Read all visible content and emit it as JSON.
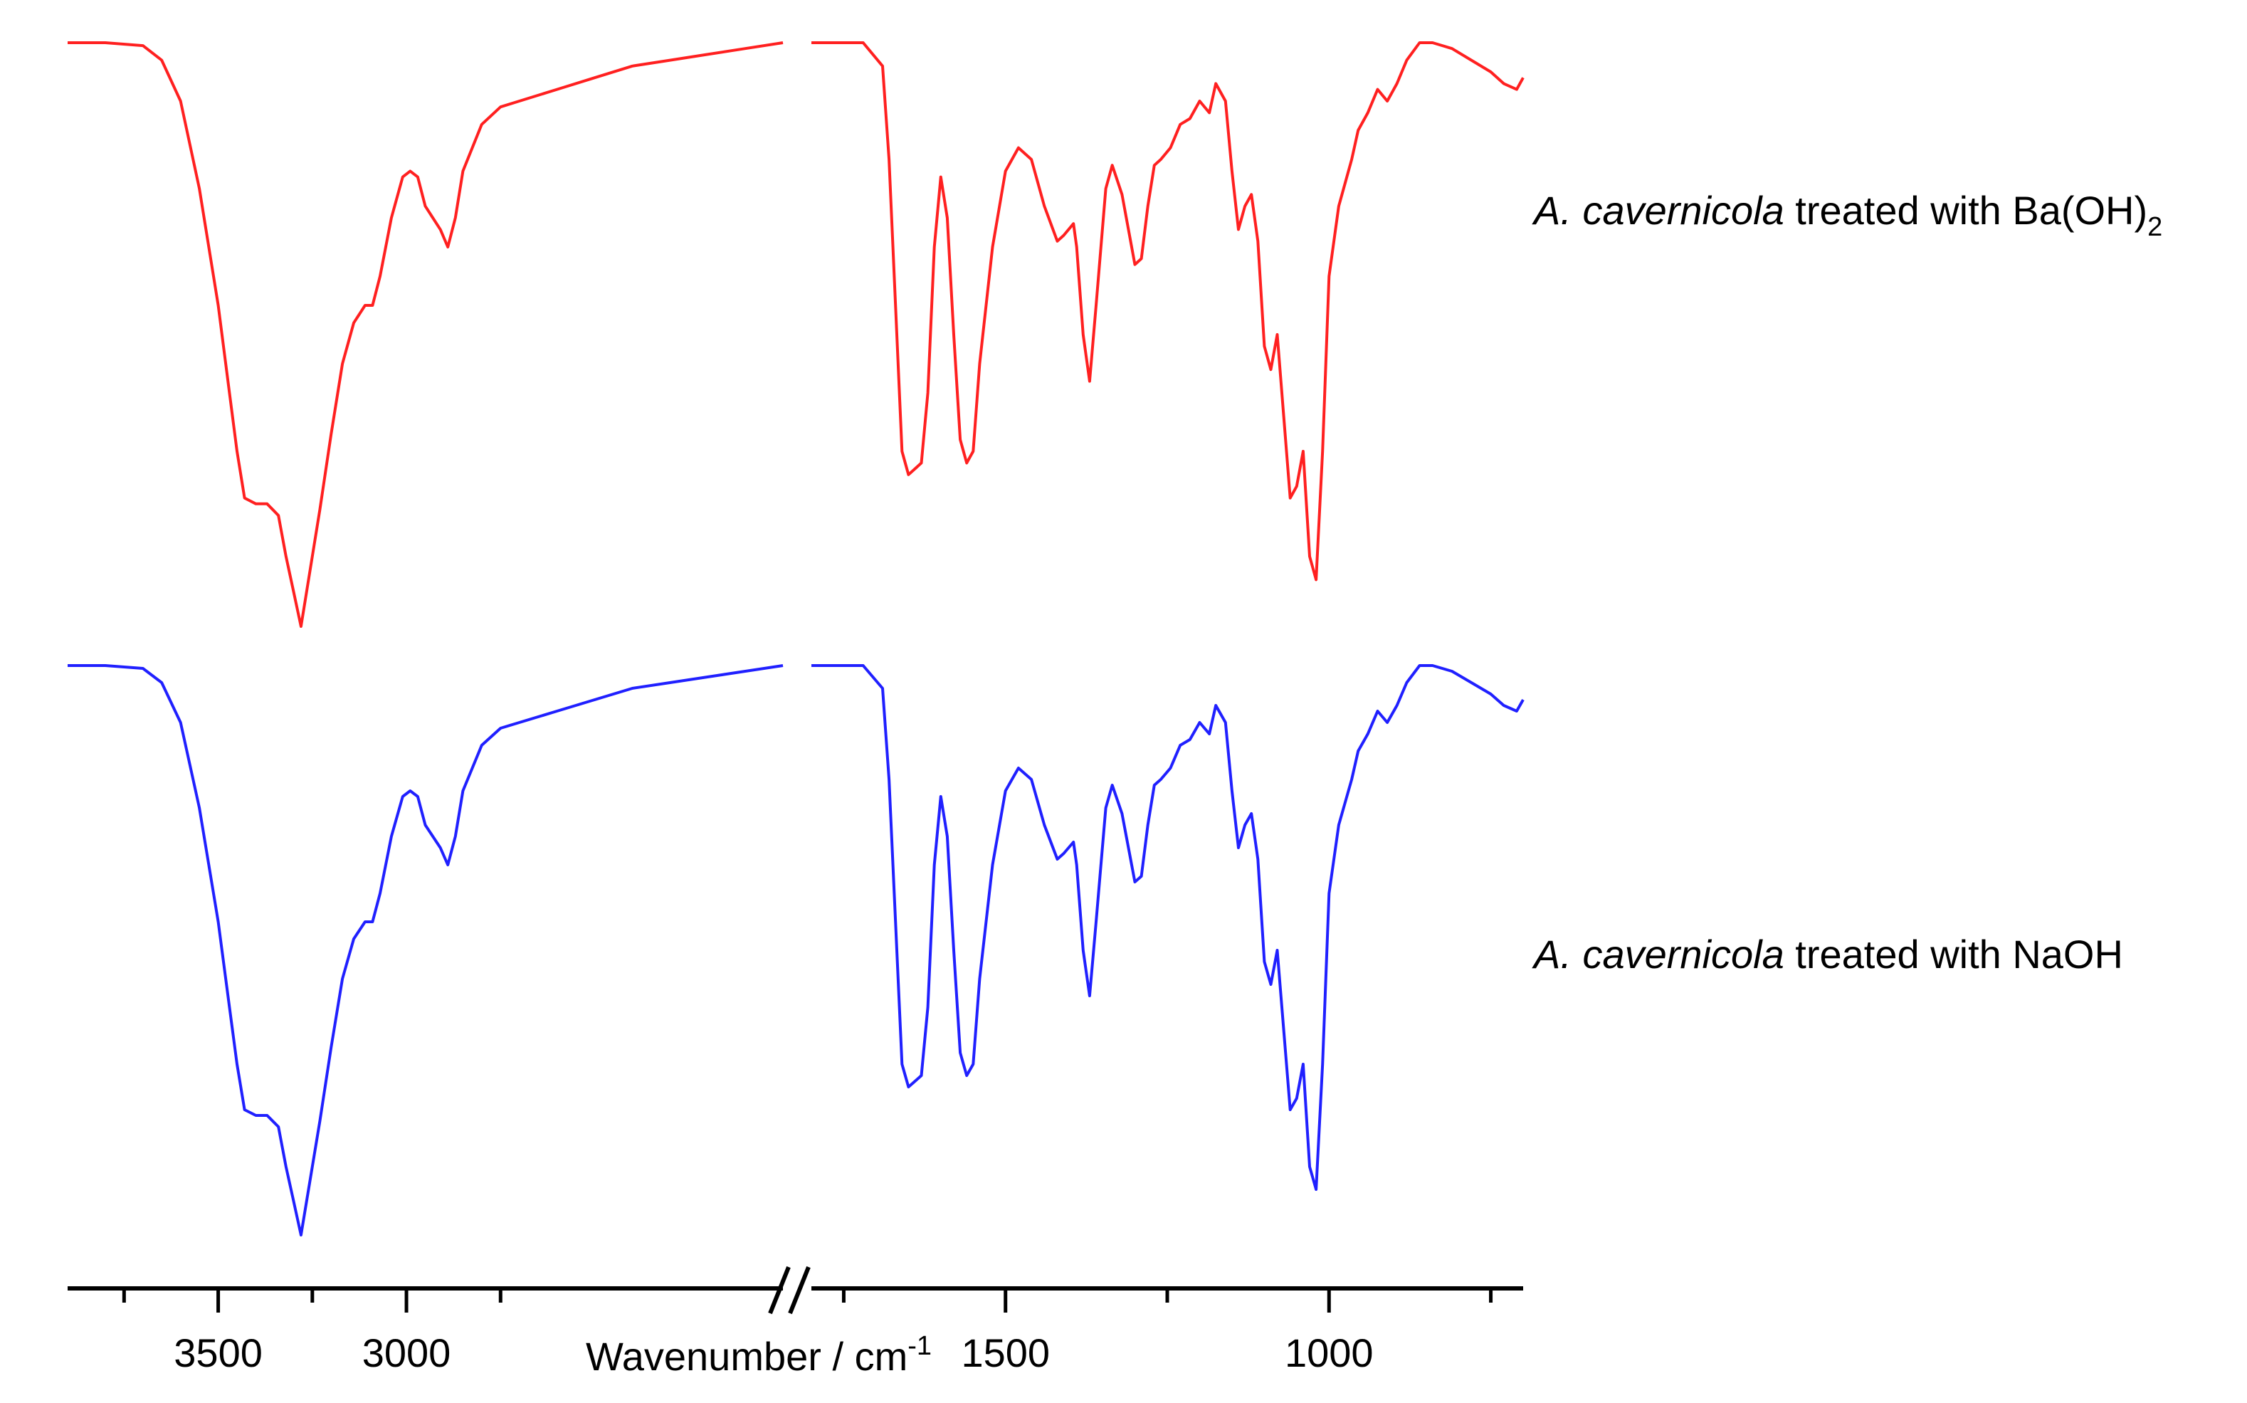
{
  "chart_data": {
    "type": "line",
    "xlabel": "Wavenumber / cm",
    "xlabel_superscript": "-1",
    "x_axis_broken": true,
    "x_segments": [
      {
        "range": [
          3900,
          2000
        ],
        "ticks": [
          3500,
          3000
        ],
        "tick_labels": [
          "3500",
          "3000"
        ],
        "minor_ticks": [
          3750,
          3250,
          2750
        ]
      },
      {
        "range": [
          1800,
          700
        ],
        "ticks": [
          1500,
          1000
        ],
        "tick_labels": [
          "1500",
          "1000"
        ],
        "minor_ticks": [
          1750,
          1250,
          750
        ]
      }
    ],
    "y_axis_shown": false,
    "y_units": "transmittance (relative, offset)",
    "series": [
      {
        "name": "A. cavernicola treated with Ba(OH)",
        "name_parts": {
          "italic": "A. cavernicola",
          "text": " treated with Ba(OH)",
          "subscript": "2"
        },
        "color": "#ff2020",
        "offset": 1.0,
        "segments": [
          [
            [
              3900,
              1.0
            ],
            [
              3800,
              1.0
            ],
            [
              3700,
              0.995
            ],
            [
              3650,
              0.97
            ],
            [
              3600,
              0.9
            ],
            [
              3550,
              0.75
            ],
            [
              3500,
              0.55
            ],
            [
              3470,
              0.4
            ],
            [
              3450,
              0.3
            ],
            [
              3430,
              0.22
            ],
            [
              3400,
              0.21
            ],
            [
              3370,
              0.21
            ],
            [
              3340,
              0.19
            ],
            [
              3320,
              0.12
            ],
            [
              3300,
              0.06
            ],
            [
              3280,
              0.0
            ],
            [
              3260,
              0.08
            ],
            [
              3230,
              0.2
            ],
            [
              3200,
              0.33
            ],
            [
              3170,
              0.45
            ],
            [
              3140,
              0.52
            ],
            [
              3110,
              0.55
            ],
            [
              3090,
              0.55
            ],
            [
              3070,
              0.6
            ],
            [
              3040,
              0.7
            ],
            [
              3010,
              0.77
            ],
            [
              2990,
              0.78
            ],
            [
              2970,
              0.77
            ],
            [
              2950,
              0.72
            ],
            [
              2930,
              0.7
            ],
            [
              2910,
              0.68
            ],
            [
              2890,
              0.65
            ],
            [
              2870,
              0.7
            ],
            [
              2850,
              0.78
            ],
            [
              2800,
              0.86
            ],
            [
              2750,
              0.89
            ],
            [
              2700,
              0.9
            ],
            [
              2600,
              0.92
            ],
            [
              2500,
              0.94
            ],
            [
              2400,
              0.96
            ],
            [
              2300,
              0.97
            ],
            [
              2200,
              0.98
            ],
            [
              2100,
              0.99
            ],
            [
              2000,
              1.0
            ]
          ],
          [
            [
              1800,
              1.0
            ],
            [
              1720,
              1.0
            ],
            [
              1690,
              0.96
            ],
            [
              1680,
              0.8
            ],
            [
              1670,
              0.55
            ],
            [
              1660,
              0.3
            ],
            [
              1650,
              0.26
            ],
            [
              1640,
              0.27
            ],
            [
              1630,
              0.28
            ],
            [
              1620,
              0.4
            ],
            [
              1610,
              0.65
            ],
            [
              1600,
              0.77
            ],
            [
              1590,
              0.7
            ],
            [
              1580,
              0.5
            ],
            [
              1570,
              0.32
            ],
            [
              1560,
              0.28
            ],
            [
              1550,
              0.3
            ],
            [
              1540,
              0.45
            ],
            [
              1520,
              0.65
            ],
            [
              1500,
              0.78
            ],
            [
              1480,
              0.82
            ],
            [
              1460,
              0.8
            ],
            [
              1440,
              0.72
            ],
            [
              1420,
              0.66
            ],
            [
              1410,
              0.67
            ],
            [
              1395,
              0.69
            ],
            [
              1390,
              0.65
            ],
            [
              1380,
              0.5
            ],
            [
              1370,
              0.42
            ],
            [
              1360,
              0.55
            ],
            [
              1345,
              0.75
            ],
            [
              1335,
              0.79
            ],
            [
              1320,
              0.74
            ],
            [
              1300,
              0.62
            ],
            [
              1290,
              0.63
            ],
            [
              1280,
              0.72
            ],
            [
              1270,
              0.79
            ],
            [
              1260,
              0.8
            ],
            [
              1245,
              0.82
            ],
            [
              1230,
              0.86
            ],
            [
              1215,
              0.87
            ],
            [
              1200,
              0.9
            ],
            [
              1185,
              0.88
            ],
            [
              1175,
              0.93
            ],
            [
              1160,
              0.9
            ],
            [
              1150,
              0.78
            ],
            [
              1140,
              0.68
            ],
            [
              1130,
              0.72
            ],
            [
              1120,
              0.74
            ],
            [
              1110,
              0.66
            ],
            [
              1100,
              0.48
            ],
            [
              1090,
              0.44
            ],
            [
              1080,
              0.5
            ],
            [
              1070,
              0.36
            ],
            [
              1060,
              0.22
            ],
            [
              1050,
              0.24
            ],
            [
              1040,
              0.3
            ],
            [
              1030,
              0.12
            ],
            [
              1020,
              0.08
            ],
            [
              1010,
              0.3
            ],
            [
              1000,
              0.6
            ],
            [
              985,
              0.72
            ],
            [
              975,
              0.76
            ],
            [
              965,
              0.8
            ],
            [
              955,
              0.85
            ],
            [
              940,
              0.88
            ],
            [
              925,
              0.92
            ],
            [
              910,
              0.9
            ],
            [
              895,
              0.93
            ],
            [
              880,
              0.97
            ],
            [
              860,
              1.0
            ],
            [
              840,
              1.0
            ],
            [
              810,
              0.99
            ],
            [
              780,
              0.97
            ],
            [
              750,
              0.95
            ],
            [
              730,
              0.93
            ],
            [
              710,
              0.92
            ],
            [
              700,
              0.94
            ]
          ]
        ]
      },
      {
        "name": "A. cavernicola treated with NaOH",
        "name_parts": {
          "italic": "A. cavernicola",
          "text": " treated with NaOH",
          "subscript": ""
        },
        "color": "#2020ff",
        "offset": 0.0,
        "segments": [
          [
            [
              3900,
              1.0
            ],
            [
              3800,
              1.0
            ],
            [
              3700,
              0.995
            ],
            [
              3650,
              0.97
            ],
            [
              3600,
              0.9
            ],
            [
              3550,
              0.75
            ],
            [
              3500,
              0.55
            ],
            [
              3470,
              0.4
            ],
            [
              3450,
              0.3
            ],
            [
              3430,
              0.22
            ],
            [
              3400,
              0.21
            ],
            [
              3370,
              0.21
            ],
            [
              3340,
              0.19
            ],
            [
              3320,
              0.12
            ],
            [
              3300,
              0.06
            ],
            [
              3280,
              0.0
            ],
            [
              3260,
              0.08
            ],
            [
              3230,
              0.2
            ],
            [
              3200,
              0.33
            ],
            [
              3170,
              0.45
            ],
            [
              3140,
              0.52
            ],
            [
              3110,
              0.55
            ],
            [
              3090,
              0.55
            ],
            [
              3070,
              0.6
            ],
            [
              3040,
              0.7
            ],
            [
              3010,
              0.77
            ],
            [
              2990,
              0.78
            ],
            [
              2970,
              0.77
            ],
            [
              2950,
              0.72
            ],
            [
              2930,
              0.7
            ],
            [
              2910,
              0.68
            ],
            [
              2890,
              0.65
            ],
            [
              2870,
              0.7
            ],
            [
              2850,
              0.78
            ],
            [
              2800,
              0.86
            ],
            [
              2750,
              0.89
            ],
            [
              2700,
              0.9
            ],
            [
              2600,
              0.92
            ],
            [
              2500,
              0.94
            ],
            [
              2400,
              0.96
            ],
            [
              2300,
              0.97
            ],
            [
              2200,
              0.98
            ],
            [
              2100,
              0.99
            ],
            [
              2000,
              1.0
            ]
          ],
          [
            [
              1800,
              1.0
            ],
            [
              1720,
              1.0
            ],
            [
              1690,
              0.96
            ],
            [
              1680,
              0.8
            ],
            [
              1670,
              0.55
            ],
            [
              1660,
              0.3
            ],
            [
              1650,
              0.26
            ],
            [
              1640,
              0.27
            ],
            [
              1630,
              0.28
            ],
            [
              1620,
              0.4
            ],
            [
              1610,
              0.65
            ],
            [
              1600,
              0.77
            ],
            [
              1590,
              0.7
            ],
            [
              1580,
              0.5
            ],
            [
              1570,
              0.32
            ],
            [
              1560,
              0.28
            ],
            [
              1550,
              0.3
            ],
            [
              1540,
              0.45
            ],
            [
              1520,
              0.65
            ],
            [
              1500,
              0.78
            ],
            [
              1480,
              0.82
            ],
            [
              1460,
              0.8
            ],
            [
              1440,
              0.72
            ],
            [
              1420,
              0.66
            ],
            [
              1410,
              0.67
            ],
            [
              1395,
              0.69
            ],
            [
              1390,
              0.65
            ],
            [
              1380,
              0.5
            ],
            [
              1370,
              0.42
            ],
            [
              1360,
              0.55
            ],
            [
              1345,
              0.75
            ],
            [
              1335,
              0.79
            ],
            [
              1320,
              0.74
            ],
            [
              1300,
              0.62
            ],
            [
              1290,
              0.63
            ],
            [
              1280,
              0.72
            ],
            [
              1270,
              0.79
            ],
            [
              1260,
              0.8
            ],
            [
              1245,
              0.82
            ],
            [
              1230,
              0.86
            ],
            [
              1215,
              0.87
            ],
            [
              1200,
              0.9
            ],
            [
              1185,
              0.88
            ],
            [
              1175,
              0.93
            ],
            [
              1160,
              0.9
            ],
            [
              1150,
              0.78
            ],
            [
              1140,
              0.68
            ],
            [
              1130,
              0.72
            ],
            [
              1120,
              0.74
            ],
            [
              1110,
              0.66
            ],
            [
              1100,
              0.48
            ],
            [
              1090,
              0.44
            ],
            [
              1080,
              0.5
            ],
            [
              1070,
              0.36
            ],
            [
              1060,
              0.22
            ],
            [
              1050,
              0.24
            ],
            [
              1040,
              0.3
            ],
            [
              1030,
              0.12
            ],
            [
              1020,
              0.08
            ],
            [
              1010,
              0.3
            ],
            [
              1000,
              0.6
            ],
            [
              985,
              0.72
            ],
            [
              975,
              0.76
            ],
            [
              965,
              0.8
            ],
            [
              955,
              0.85
            ],
            [
              940,
              0.88
            ],
            [
              925,
              0.92
            ],
            [
              910,
              0.9
            ],
            [
              895,
              0.93
            ],
            [
              880,
              0.97
            ],
            [
              860,
              1.0
            ],
            [
              840,
              1.0
            ],
            [
              810,
              0.99
            ],
            [
              780,
              0.97
            ],
            [
              750,
              0.95
            ],
            [
              730,
              0.93
            ],
            [
              710,
              0.92
            ],
            [
              700,
              0.94
            ]
          ]
        ]
      }
    ],
    "legend_placement": "right"
  }
}
